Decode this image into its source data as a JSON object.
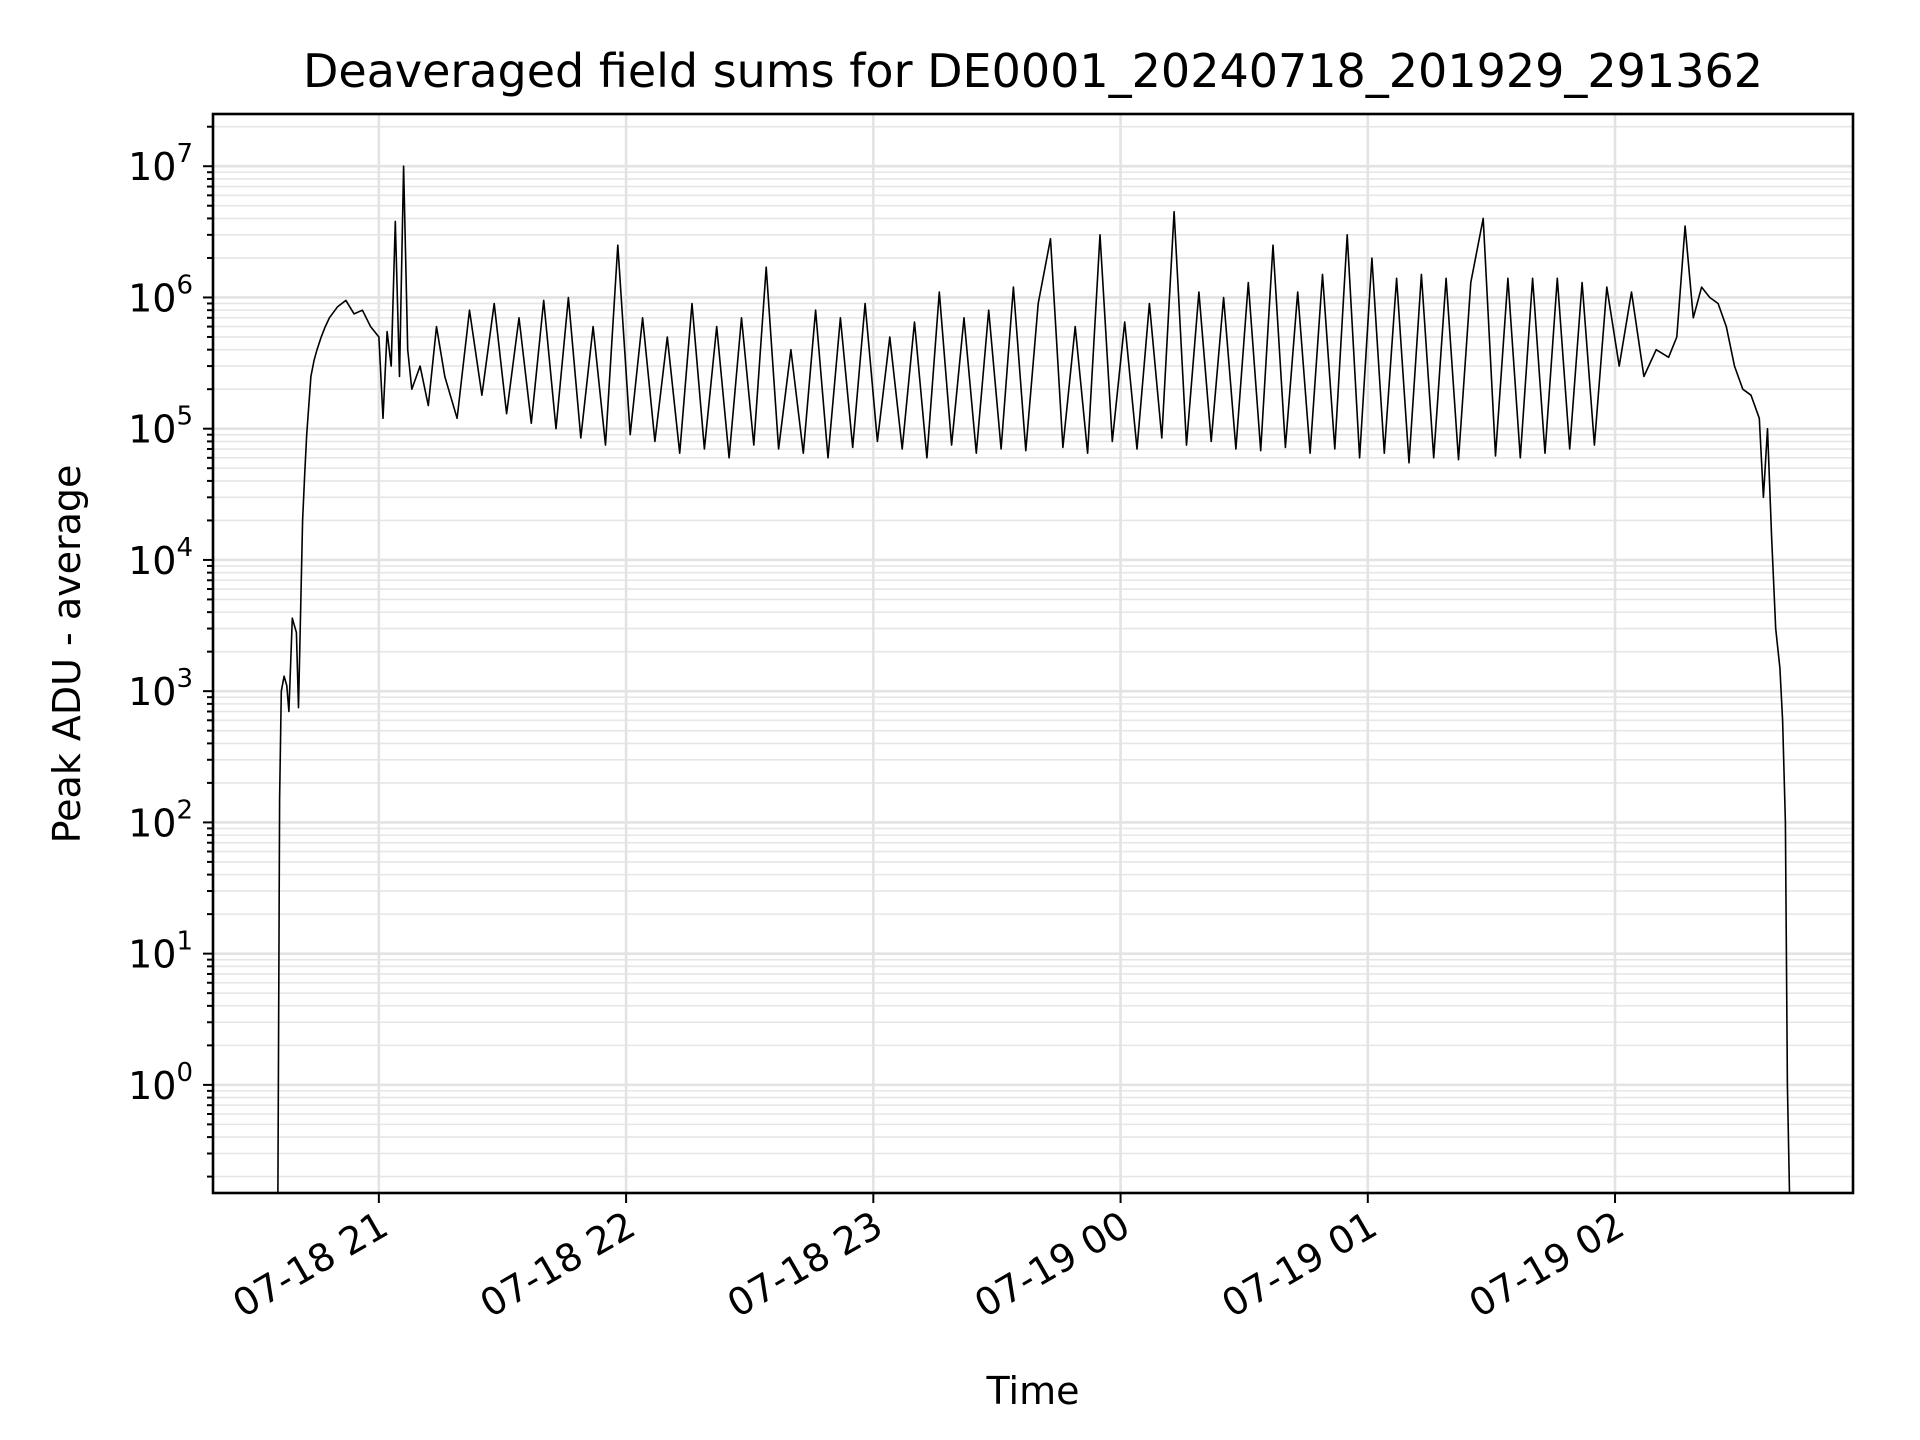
{
  "chart_data": {
    "type": "line",
    "title": "Deaveraged field sums for DE0001_20240718_201929_291362",
    "xlabel": "Time",
    "ylabel": "Peak ADU - average",
    "yscale": "log",
    "ylim": [
      0.15,
      25000000
    ],
    "xlim": [
      "2024-07-18 20:19:45",
      "2024-07-19 02:57:45"
    ],
    "grid": "major and minor",
    "x_tick_labels": [
      "07-18 21",
      "07-18 22",
      "07-18 23",
      "07-19 00",
      "07-19 01",
      "07-19 02"
    ],
    "y_tick_labels": [
      {
        "base": "10",
        "exp": "0"
      },
      {
        "base": "10",
        "exp": "1"
      },
      {
        "base": "10",
        "exp": "2"
      },
      {
        "base": "10",
        "exp": "3"
      },
      {
        "base": "10",
        "exp": "4"
      },
      {
        "base": "10",
        "exp": "5"
      },
      {
        "base": "10",
        "exp": "6"
      },
      {
        "base": "10",
        "exp": "7"
      }
    ],
    "series": [
      {
        "color": "#000000",
        "x": [
          "2024-07-18 20:35:30",
          "2024-07-18 20:35:55",
          "2024-07-18 20:36:20",
          "2024-07-18 20:37:00",
          "2024-07-18 20:37:40",
          "2024-07-18 20:38:10",
          "2024-07-18 20:39:00",
          "2024-07-18 20:40:00",
          "2024-07-18 20:40:30",
          "2024-07-18 20:41:30",
          "2024-07-18 20:42:00",
          "2024-07-18 20:42:30",
          "2024-07-18 20:43:00",
          "2024-07-18 20:43:30",
          "2024-07-18 20:44:15",
          "2024-07-18 20:45:00",
          "2024-07-18 20:46:00",
          "2024-07-18 20:47:00",
          "2024-07-18 20:48:00",
          "2024-07-18 20:50:00",
          "2024-07-18 20:52:00",
          "2024-07-18 20:54:00",
          "2024-07-18 20:56:00",
          "2024-07-18 20:58:00",
          "2024-07-18 21:00:00",
          "2024-07-18 21:01:00",
          "2024-07-18 21:02:00",
          "2024-07-18 21:03:00",
          "2024-07-18 21:04:00",
          "2024-07-18 21:05:00",
          "2024-07-18 21:06:00",
          "2024-07-18 21:07:00",
          "2024-07-18 21:08:00",
          "2024-07-18 21:10:00",
          "2024-07-18 21:12:00",
          "2024-07-18 21:14:00",
          "2024-07-18 21:16:00",
          "2024-07-18 21:19:00",
          "2024-07-18 21:22:00",
          "2024-07-18 21:25:00",
          "2024-07-18 21:28:00",
          "2024-07-18 21:31:00",
          "2024-07-18 21:34:00",
          "2024-07-18 21:37:00",
          "2024-07-18 21:40:00",
          "2024-07-18 21:43:00",
          "2024-07-18 21:46:00",
          "2024-07-18 21:49:00",
          "2024-07-18 21:52:00",
          "2024-07-18 21:55:00",
          "2024-07-18 21:58:00",
          "2024-07-18 22:01:00",
          "2024-07-18 22:04:00",
          "2024-07-18 22:07:00",
          "2024-07-18 22:10:00",
          "2024-07-18 22:13:00",
          "2024-07-18 22:16:00",
          "2024-07-18 22:19:00",
          "2024-07-18 22:22:00",
          "2024-07-18 22:25:00",
          "2024-07-18 22:28:00",
          "2024-07-18 22:31:00",
          "2024-07-18 22:34:00",
          "2024-07-18 22:37:00",
          "2024-07-18 22:40:00",
          "2024-07-18 22:43:00",
          "2024-07-18 22:46:00",
          "2024-07-18 22:49:00",
          "2024-07-18 22:52:00",
          "2024-07-18 22:55:00",
          "2024-07-18 22:58:00",
          "2024-07-18 23:01:00",
          "2024-07-18 23:04:00",
          "2024-07-18 23:07:00",
          "2024-07-18 23:10:00",
          "2024-07-18 23:13:00",
          "2024-07-18 23:16:00",
          "2024-07-18 23:19:00",
          "2024-07-18 23:22:00",
          "2024-07-18 23:25:00",
          "2024-07-18 23:28:00",
          "2024-07-18 23:31:00",
          "2024-07-18 23:34:00",
          "2024-07-18 23:37:00",
          "2024-07-18 23:40:00",
          "2024-07-18 23:43:00",
          "2024-07-18 23:46:00",
          "2024-07-18 23:49:00",
          "2024-07-18 23:52:00",
          "2024-07-18 23:55:00",
          "2024-07-18 23:58:00",
          "2024-07-19 00:01:00",
          "2024-07-19 00:04:00",
          "2024-07-19 00:07:00",
          "2024-07-19 00:10:00",
          "2024-07-19 00:13:00",
          "2024-07-19 00:16:00",
          "2024-07-19 00:19:00",
          "2024-07-19 00:22:00",
          "2024-07-19 00:25:00",
          "2024-07-19 00:28:00",
          "2024-07-19 00:31:00",
          "2024-07-19 00:34:00",
          "2024-07-19 00:37:00",
          "2024-07-19 00:40:00",
          "2024-07-19 00:43:00",
          "2024-07-19 00:46:00",
          "2024-07-19 00:49:00",
          "2024-07-19 00:52:00",
          "2024-07-19 00:55:00",
          "2024-07-19 00:58:00",
          "2024-07-19 01:01:00",
          "2024-07-19 01:04:00",
          "2024-07-19 01:07:00",
          "2024-07-19 01:10:00",
          "2024-07-19 01:13:00",
          "2024-07-19 01:16:00",
          "2024-07-19 01:19:00",
          "2024-07-19 01:22:00",
          "2024-07-19 01:25:00",
          "2024-07-19 01:28:00",
          "2024-07-19 01:31:00",
          "2024-07-19 01:34:00",
          "2024-07-19 01:37:00",
          "2024-07-19 01:40:00",
          "2024-07-19 01:43:00",
          "2024-07-19 01:46:00",
          "2024-07-19 01:49:00",
          "2024-07-19 01:52:00",
          "2024-07-19 01:55:00",
          "2024-07-19 01:58:00",
          "2024-07-19 02:01:00",
          "2024-07-19 02:04:00",
          "2024-07-19 02:07:00",
          "2024-07-19 02:10:00",
          "2024-07-19 02:13:00",
          "2024-07-19 02:15:00",
          "2024-07-19 02:17:00",
          "2024-07-19 02:19:00",
          "2024-07-19 02:21:00",
          "2024-07-19 02:23:00",
          "2024-07-19 02:25:00",
          "2024-07-19 02:27:00",
          "2024-07-19 02:29:00",
          "2024-07-19 02:31:00",
          "2024-07-19 02:33:00",
          "2024-07-19 02:35:00",
          "2024-07-19 02:36:00",
          "2024-07-19 02:37:00",
          "2024-07-19 02:38:00",
          "2024-07-19 02:39:00",
          "2024-07-19 02:40:00",
          "2024-07-19 02:40:40",
          "2024-07-19 02:41:20",
          "2024-07-19 02:41:50",
          "2024-07-19 02:42:20",
          "2024-07-19 02:43:00"
        ],
        "y": [
          0.15,
          150,
          1000,
          1300,
          1100,
          700,
          3600,
          2800,
          750,
          20000,
          45000,
          90000,
          150000,
          250000,
          330000,
          400000,
          500000,
          600000,
          700000,
          850000,
          950000,
          750000,
          800000,
          600000,
          500000,
          120000,
          550000,
          300000,
          3800000,
          250000,
          10000000,
          400000,
          200000,
          300000,
          150000,
          600000,
          250000,
          120000,
          800000,
          180000,
          900000,
          130000,
          700000,
          110000,
          950000,
          100000,
          1000000,
          85000,
          600000,
          75000,
          2500000,
          90000,
          700000,
          80000,
          500000,
          65000,
          900000,
          70000,
          600000,
          60000,
          700000,
          75000,
          1700000,
          70000,
          400000,
          65000,
          800000,
          60000,
          700000,
          72000,
          900000,
          80000,
          500000,
          70000,
          650000,
          60000,
          1100000,
          75000,
          700000,
          65000,
          800000,
          70000,
          1200000,
          68000,
          900000,
          2800000,
          72000,
          600000,
          65000,
          3000000,
          80000,
          650000,
          70000,
          900000,
          85000,
          4500000,
          75000,
          1100000,
          80000,
          1000000,
          70000,
          1300000,
          68000,
          2500000,
          72000,
          1100000,
          65000,
          1500000,
          70000,
          3000000,
          60000,
          2000000,
          65000,
          1400000,
          55000,
          1500000,
          60000,
          1400000,
          58000,
          1300000,
          4000000,
          62000,
          1400000,
          60000,
          1400000,
          65000,
          1400000,
          70000,
          1300000,
          75000,
          1200000,
          300000,
          1100000,
          250000,
          400000,
          350000,
          500000,
          3500000,
          700000,
          1200000,
          1000000,
          900000,
          600000,
          300000,
          200000,
          180000,
          120000,
          30000,
          100000,
          15000,
          3000,
          1500,
          600,
          100,
          1,
          0.15,
          0.15
        ]
      }
    ]
  }
}
